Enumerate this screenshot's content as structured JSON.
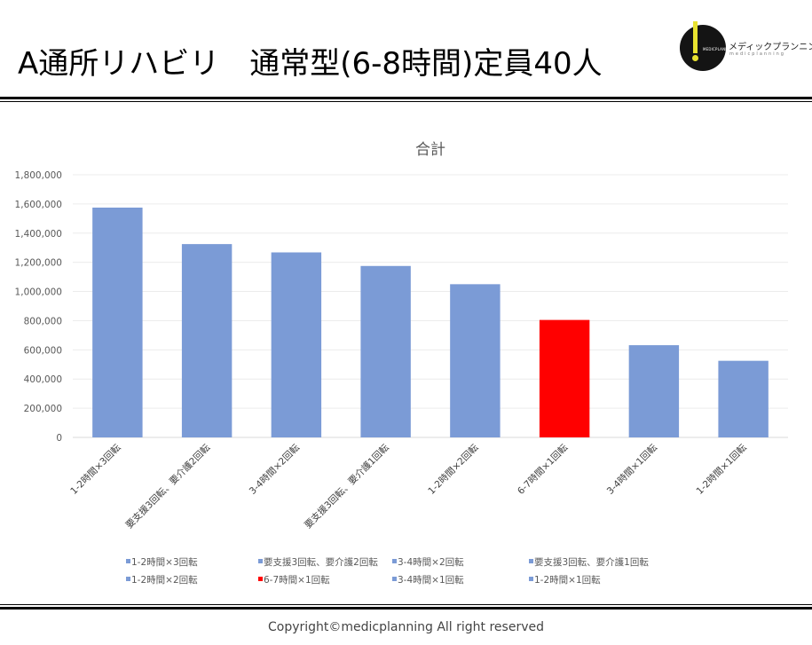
{
  "header": {
    "title": "A通所リハビリ　通常型(6-8時間)定員40人",
    "logo": {
      "small_text": "MEDICPLANNING",
      "name": "メディックプランニング",
      "sub": "medicplanning"
    }
  },
  "footer": {
    "copyright": "Copyright©medicplanning All right reserved"
  },
  "colors": {
    "bar": "#7b9bd6",
    "highlight": "#ff0000",
    "axis": "#d9d9d9",
    "grid": "#ececec"
  },
  "chart_data": {
    "type": "bar",
    "title": "合計",
    "xlabel": "",
    "ylabel": "",
    "ylim": [
      0,
      1800000
    ],
    "yticks": [
      "0",
      "200,000",
      "400,000",
      "600,000",
      "800,000",
      "1,000,000",
      "1,200,000",
      "1,400,000",
      "1,600,000",
      "1,800,000"
    ],
    "grid": true,
    "legend_position": "bottom",
    "categories": [
      "1-2時間×3回転",
      "要支援3回転、要介護2回転",
      "3-4時間×2回転",
      "要支援3回転、要介護1回転",
      "1-2時間×2回転",
      "6-7時間×1回転",
      "3-4時間×1回転",
      "1-2時間×1回転"
    ],
    "values": [
      1575000,
      1325000,
      1268000,
      1175000,
      1050000,
      805000,
      632000,
      525000
    ],
    "highlight_index": 5,
    "legend": [
      "1-2時間×3回転",
      "要支援3回転、要介護2回転",
      "3-4時間×2回転",
      "要支援3回転、要介護1回転",
      "1-2時間×2回転",
      "6-7時間×1回転",
      "3-4時間×1回転",
      "1-2時間×1回転"
    ]
  }
}
